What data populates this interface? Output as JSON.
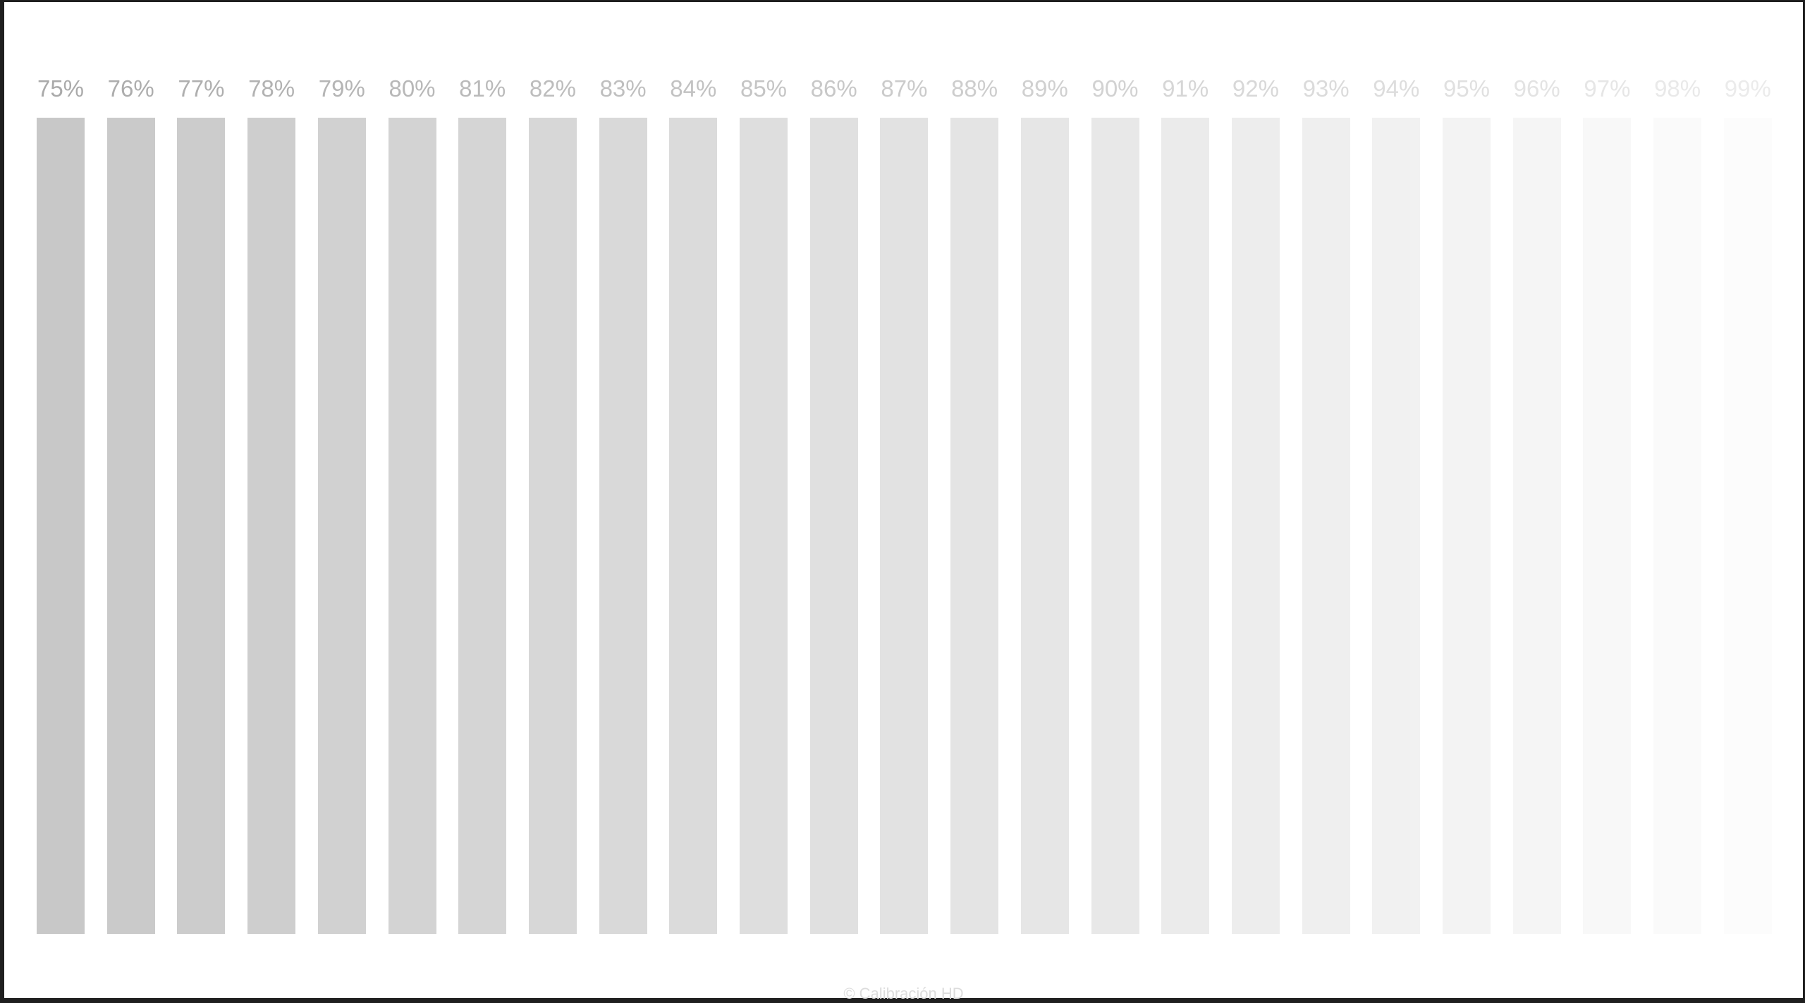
{
  "pattern": {
    "steps": [
      {
        "label": "75%",
        "value": 75,
        "color": "#c8c8c8"
      },
      {
        "label": "76%",
        "value": 76,
        "color": "#cacaca"
      },
      {
        "label": "77%",
        "value": 77,
        "color": "#cccccc"
      },
      {
        "label": "78%",
        "value": 78,
        "color": "#cecece"
      },
      {
        "label": "79%",
        "value": 79,
        "color": "#d1d1d1"
      },
      {
        "label": "80%",
        "value": 80,
        "color": "#d3d3d3"
      },
      {
        "label": "81%",
        "value": 81,
        "color": "#d5d5d5"
      },
      {
        "label": "82%",
        "value": 82,
        "color": "#d7d7d7"
      },
      {
        "label": "83%",
        "value": 83,
        "color": "#d9d9d9"
      },
      {
        "label": "84%",
        "value": 84,
        "color": "#dbdbdb"
      },
      {
        "label": "85%",
        "value": 85,
        "color": "#dedede"
      },
      {
        "label": "86%",
        "value": 86,
        "color": "#e0e0e0"
      },
      {
        "label": "87%",
        "value": 87,
        "color": "#e2e2e2"
      },
      {
        "label": "88%",
        "value": 88,
        "color": "#e4e4e4"
      },
      {
        "label": "89%",
        "value": 89,
        "color": "#e6e6e6"
      },
      {
        "label": "90%",
        "value": 90,
        "color": "#e8e8e8"
      },
      {
        "label": "91%",
        "value": 91,
        "color": "#ebebeb"
      },
      {
        "label": "92%",
        "value": 92,
        "color": "#ededed"
      },
      {
        "label": "93%",
        "value": 93,
        "color": "#efefef"
      },
      {
        "label": "94%",
        "value": 94,
        "color": "#f1f1f1"
      },
      {
        "label": "95%",
        "value": 95,
        "color": "#f3f3f3"
      },
      {
        "label": "96%",
        "value": 96,
        "color": "#f5f5f5"
      },
      {
        "label": "97%",
        "value": 97,
        "color": "#f8f8f8"
      },
      {
        "label": "98%",
        "value": 98,
        "color": "#fafafa"
      },
      {
        "label": "99%",
        "value": 99,
        "color": "#fcfcfc"
      }
    ]
  },
  "footer": {
    "copyright": "© Calibración HD"
  }
}
